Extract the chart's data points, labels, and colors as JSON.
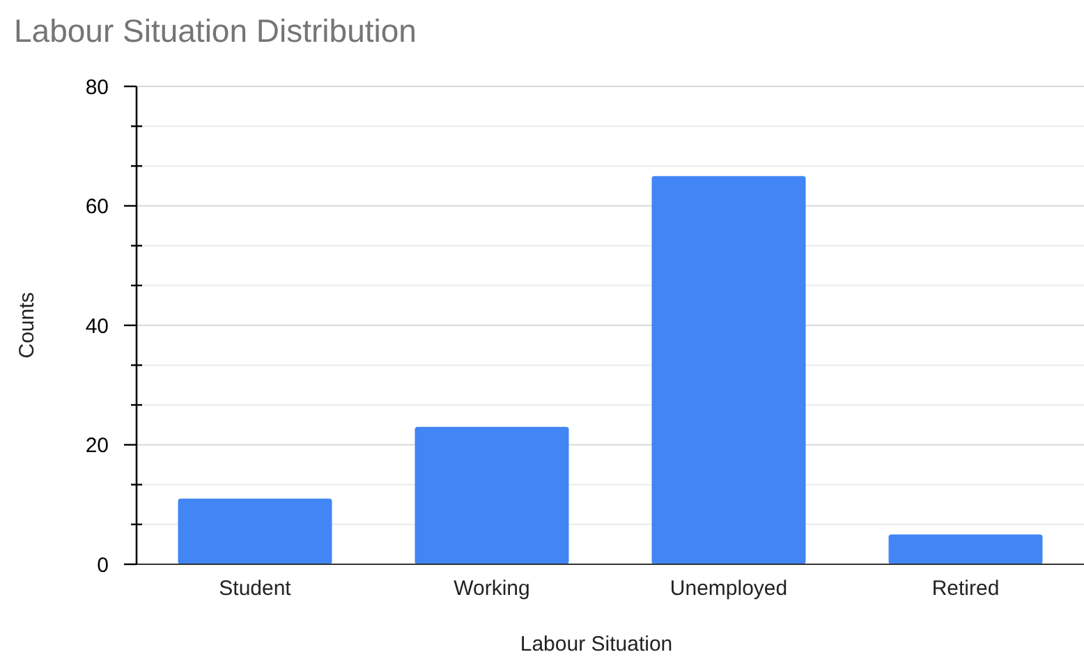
{
  "chart_data": {
    "type": "bar",
    "title": "Labour Situation Distribution",
    "xlabel": "Labour Situation",
    "ylabel": "Counts",
    "categories": [
      "Student",
      "Working",
      "Unemployed",
      "Retired"
    ],
    "values": [
      11,
      23,
      65,
      5
    ],
    "color": "#4285f4",
    "ylim": [
      0,
      80
    ],
    "yticks": [
      0,
      {
        "value": 6.67,
        "label": null
      },
      {
        "value": 13.33,
        "label": null
      },
      20,
      {
        "value": 26.67,
        "label": null
      },
      {
        "value": 33.33,
        "label": null
      },
      40,
      {
        "value": 46.67,
        "label": null
      },
      {
        "value": 53.33,
        "label": null
      },
      60,
      {
        "value": 66.67,
        "label": null
      },
      {
        "value": 73.33,
        "label": null
      },
      80
    ],
    "grid": true
  }
}
